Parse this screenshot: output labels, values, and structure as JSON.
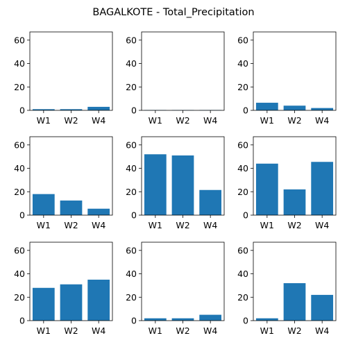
{
  "figure": {
    "title": "BAGALKOTE - Total_Precipitation"
  },
  "style": {
    "bar_color": "#1f77b4",
    "axis_color": "#000000",
    "background": "#ffffff"
  },
  "chart_data": [
    {
      "type": "bar",
      "categories": [
        "W1",
        "W2",
        "W4"
      ],
      "values": [
        1.0,
        1.0,
        3.0
      ],
      "ylim": [
        0,
        67
      ],
      "yticks": [
        0,
        20,
        40,
        60
      ],
      "grid": false
    },
    {
      "type": "bar",
      "categories": [
        "W1",
        "W2",
        "W4"
      ],
      "values": [
        0.3,
        0.3,
        0.3
      ],
      "ylim": [
        0,
        67
      ],
      "yticks": [
        0,
        20,
        40,
        60
      ],
      "grid": false
    },
    {
      "type": "bar",
      "categories": [
        "W1",
        "W2",
        "W4"
      ],
      "values": [
        6.5,
        4.0,
        2.0
      ],
      "ylim": [
        0,
        67
      ],
      "yticks": [
        0,
        20,
        40,
        60
      ],
      "grid": false
    },
    {
      "type": "bar",
      "categories": [
        "W1",
        "W2",
        "W4"
      ],
      "values": [
        18.0,
        12.5,
        5.5
      ],
      "ylim": [
        0,
        67
      ],
      "yticks": [
        0,
        20,
        40,
        60
      ],
      "grid": false
    },
    {
      "type": "bar",
      "categories": [
        "W1",
        "W2",
        "W4"
      ],
      "values": [
        52.0,
        51.0,
        21.5
      ],
      "ylim": [
        0,
        67
      ],
      "yticks": [
        0,
        20,
        40,
        60
      ],
      "grid": false
    },
    {
      "type": "bar",
      "categories": [
        "W1",
        "W2",
        "W4"
      ],
      "values": [
        44.0,
        22.0,
        45.5
      ],
      "ylim": [
        0,
        67
      ],
      "yticks": [
        0,
        20,
        40,
        60
      ],
      "grid": false
    },
    {
      "type": "bar",
      "categories": [
        "W1",
        "W2",
        "W4"
      ],
      "values": [
        28.0,
        31.0,
        35.0
      ],
      "ylim": [
        0,
        67
      ],
      "yticks": [
        0,
        20,
        40,
        60
      ],
      "grid": false
    },
    {
      "type": "bar",
      "categories": [
        "W1",
        "W2",
        "W4"
      ],
      "values": [
        2.0,
        2.0,
        5.0
      ],
      "ylim": [
        0,
        67
      ],
      "yticks": [
        0,
        20,
        40,
        60
      ],
      "grid": false
    },
    {
      "type": "bar",
      "categories": [
        "W1",
        "W2",
        "W4"
      ],
      "values": [
        2.0,
        32.0,
        22.0
      ],
      "ylim": [
        0,
        67
      ],
      "yticks": [
        0,
        20,
        40,
        60
      ],
      "grid": false
    }
  ]
}
